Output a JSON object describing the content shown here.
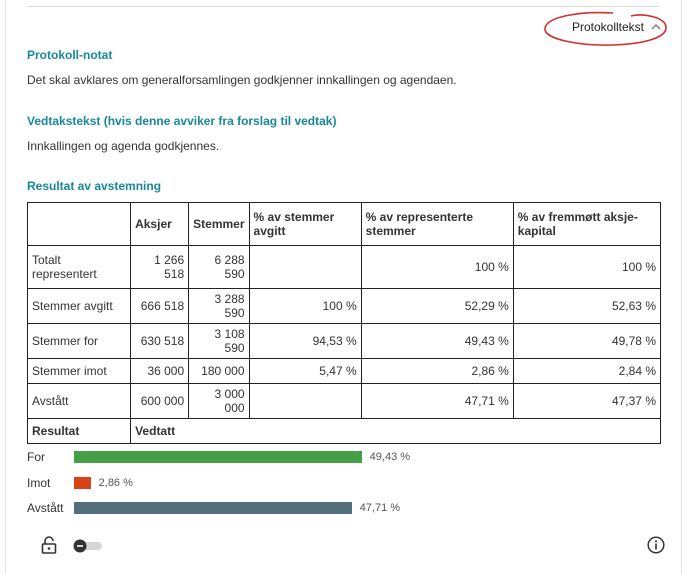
{
  "header": {
    "toggle_label": "Protokolltekst",
    "toggle_icon": "chevron-up-icon"
  },
  "note": {
    "title": "Protokoll-notat",
    "text": "Det skal avklares om generalforsamlingen godkjenner innkallingen og agendaen."
  },
  "resolution": {
    "title": "Vedtakstekst (hvis denne avviker fra forslag til vedtak)",
    "text": "Innkallingen og agenda godkjennes."
  },
  "result": {
    "title": "Resultat av avstemning",
    "headers": [
      "",
      "Aksjer",
      "Stemmer",
      "% av stemmer avgitt",
      "% av representerte stemmer",
      "% av fremmøtt aksje-kapital"
    ],
    "rows": [
      [
        "Totalt representert",
        "1 266 518",
        "6 288 590",
        "",
        "100 %",
        "100 %"
      ],
      [
        "Stemmer avgitt",
        "666 518",
        "3 288 590",
        "100 %",
        "52,29 %",
        "52,63 %"
      ],
      [
        "Stemmer for",
        "630 518",
        "3 108 590",
        "94,53 %",
        "49,43 %",
        "49,78 %"
      ],
      [
        "Stemmer imot",
        "36 000",
        "180 000",
        "5,47 %",
        "2,86 %",
        "2,84 %"
      ],
      [
        "Avstått",
        "600 000",
        "3 000 000",
        "",
        "47,71 %",
        "47,37 %"
      ]
    ],
    "result_label": "Resultat",
    "result_value": "Vedtatt"
  },
  "bars": [
    {
      "label": "For",
      "value": 49.43,
      "display": "49,43 %",
      "color": "#43a047"
    },
    {
      "label": "Imot",
      "value": 2.86,
      "display": "2,86 %",
      "color": "#d84315"
    },
    {
      "label": "Avstått",
      "value": 47.71,
      "display": "47,71 %",
      "color": "#546e7a"
    }
  ],
  "footer": {
    "lock_icon": "lock-open-icon",
    "switch_state": "off",
    "info_icon": "info-icon"
  }
}
